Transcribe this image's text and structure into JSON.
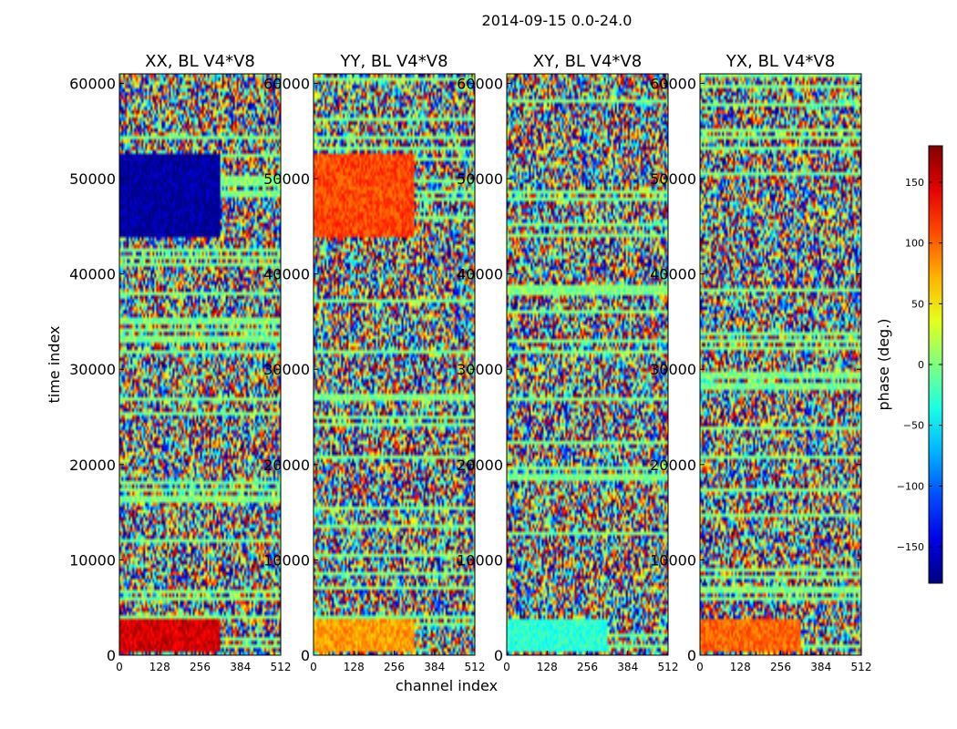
{
  "chart_data": {
    "type": "heatmap",
    "suptitle": "2014-09-15 0.0-24.0",
    "xlabel": "channel index",
    "ylabel": "time index",
    "colorbar_label": "phase (deg.)",
    "x_range": [
      0,
      512
    ],
    "y_range": [
      0,
      61000
    ],
    "x_ticks": [
      0,
      128,
      256,
      384,
      512
    ],
    "y_ticks": [
      0,
      10000,
      20000,
      30000,
      40000,
      50000,
      60000
    ],
    "colorbar_range": [
      -180,
      180
    ],
    "colorbar_ticks": [
      -150,
      -100,
      -50,
      0,
      50,
      100,
      150
    ],
    "colormap": "jet",
    "panels": [
      {
        "title": "XX, BL V4*V8",
        "dominant_phase": [
          {
            "y0": 500,
            "y1": 4000,
            "phase": 150
          },
          {
            "y0": 44000,
            "y1": 52500,
            "phase": -170
          }
        ]
      },
      {
        "title": "YY, BL V4*V8",
        "dominant_phase": [
          {
            "y0": 500,
            "y1": 4000,
            "phase": 80
          },
          {
            "y0": 44000,
            "y1": 52500,
            "phase": 110
          }
        ]
      },
      {
        "title": "XY, BL V4*V8",
        "dominant_phase": [
          {
            "y0": 500,
            "y1": 4000,
            "phase": -30
          }
        ]
      },
      {
        "title": "YX, BL V4*V8",
        "dominant_phase": [
          {
            "y0": 500,
            "y1": 4000,
            "phase": 100
          }
        ]
      }
    ]
  }
}
